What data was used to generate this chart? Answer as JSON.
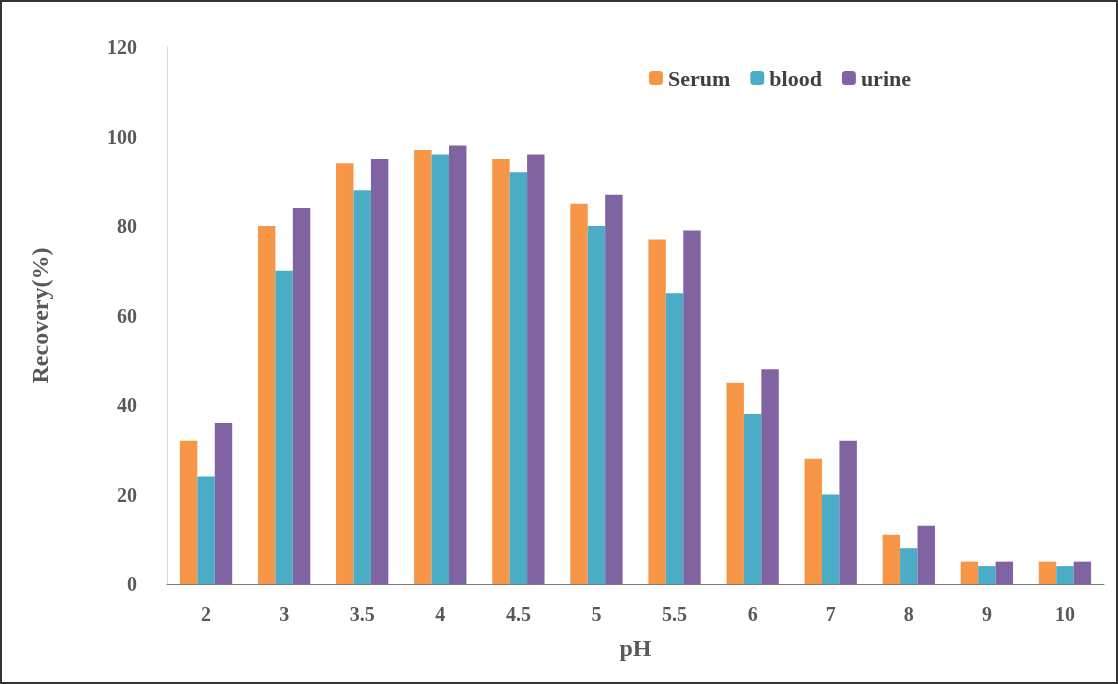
{
  "chart_data": {
    "type": "bar",
    "xlabel": "pH",
    "ylabel": "Recovery(%)",
    "categories": [
      "2",
      "3",
      "3.5",
      "4",
      "4.5",
      "5",
      "5.5",
      "6",
      "7",
      "8",
      "9",
      "10"
    ],
    "series": [
      {
        "name": "Serum",
        "color": "#f79646",
        "values": [
          32,
          80,
          94,
          97,
          95,
          85,
          77,
          45,
          28,
          11,
          5,
          5
        ]
      },
      {
        "name": "blood",
        "color": "#4bacc6",
        "values": [
          24,
          70,
          88,
          96,
          92,
          80,
          65,
          38,
          20,
          8,
          4,
          4
        ]
      },
      {
        "name": "urine",
        "color": "#8064a2",
        "values": [
          36,
          84,
          95,
          98,
          96,
          87,
          79,
          48,
          32,
          13,
          5,
          5
        ]
      }
    ],
    "ylim": [
      0,
      120
    ],
    "yticks": [
      0,
      20,
      40,
      60,
      80,
      100,
      120
    ],
    "grid": false,
    "legend": "top right"
  }
}
